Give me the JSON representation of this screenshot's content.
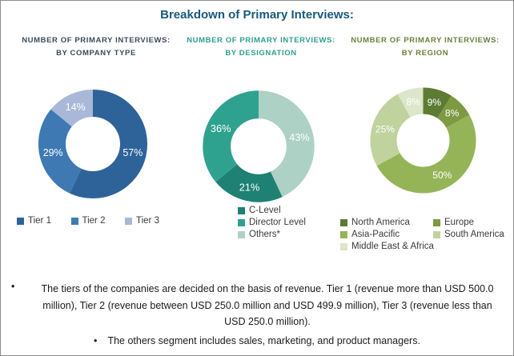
{
  "header": {
    "title": "Breakdown of Primary Interviews:",
    "title_color": "#19597c"
  },
  "chart_data": [
    {
      "type": "pie",
      "subtype": "donut",
      "title": "NUMBER OF PRIMARY INTERVIEWS:",
      "subtitle": "BY COMPANY TYPE",
      "title_color": "#3c4b5c",
      "unit": "%",
      "label_color": "#ffffff",
      "legend_position": "bottom-horizontal",
      "segments": [
        {
          "label": "Tier 1",
          "value": 57,
          "color": "#2e6399"
        },
        {
          "label": "Tier 2",
          "value": 29,
          "color": "#3e79b4"
        },
        {
          "label": "Tier 3",
          "value": 14,
          "color": "#a9b8d8"
        }
      ],
      "legend": [
        {
          "label": "Tier 1",
          "color": "#2e6399"
        },
        {
          "label": "Tier 2",
          "color": "#3e79b4"
        },
        {
          "label": "Tier 3",
          "color": "#a9b8d8"
        }
      ]
    },
    {
      "type": "pie",
      "subtype": "donut",
      "title": "NUMBER OF PRIMARY INTERVIEWS:",
      "subtitle": "BY DESIGNATION",
      "title_color": "#2f9e8d",
      "unit": "%",
      "label_color": "#ffffff",
      "legend_position": "bottom-vertical",
      "segments": [
        {
          "label": "Others*",
          "value": 43,
          "color": "#add1c5"
        },
        {
          "label": "C-Level",
          "value": 21,
          "color": "#1e8173"
        },
        {
          "label": "Director Level",
          "value": 36,
          "color": "#2fa28f"
        }
      ],
      "legend": [
        {
          "label": "C-Level",
          "color": "#1e8173"
        },
        {
          "label": "Director Level",
          "color": "#2fa28f"
        },
        {
          "label": "Others*",
          "color": "#add1c5"
        }
      ]
    },
    {
      "type": "pie",
      "subtype": "donut",
      "title": "NUMBER OF PRIMARY INTERVIEWS:",
      "subtitle": "BY REGION",
      "title_color": "#6b7f3d",
      "unit": "%",
      "label_color": "#ffffff",
      "legend_position": "bottom-two-columns",
      "segments": [
        {
          "label": "North America",
          "value": 9,
          "color": "#5e7b34"
        },
        {
          "label": "Europe",
          "value": 8,
          "color": "#7d9942"
        },
        {
          "label": "Asia-Pacific",
          "value": 50,
          "color": "#95b457"
        },
        {
          "label": "South America",
          "value": 25,
          "color": "#c0d29e"
        },
        {
          "label": "Middle East & Africa",
          "value": 8,
          "color": "#dde6ca"
        }
      ],
      "legend": [
        {
          "label": "North America",
          "color": "#5e7b34"
        },
        {
          "label": "Europe",
          "color": "#7d9942"
        },
        {
          "label": "Asia-Pacific",
          "color": "#95b457"
        },
        {
          "label": "South America",
          "color": "#c0d29e"
        },
        {
          "label": "Middle East & Africa",
          "color": "#dde6ca"
        }
      ]
    }
  ],
  "footnotes": {
    "bullet": "•",
    "items": [
      "The tiers of the companies are decided on the basis of revenue. Tier 1 (revenue more than USD 500.0 million), Tier 2 (revenue between USD 250.0 million and USD 499.9 million), Tier 3 (revenue less than USD 250.0 million).",
      "The others segment includes sales, marketing, and product managers."
    ]
  }
}
